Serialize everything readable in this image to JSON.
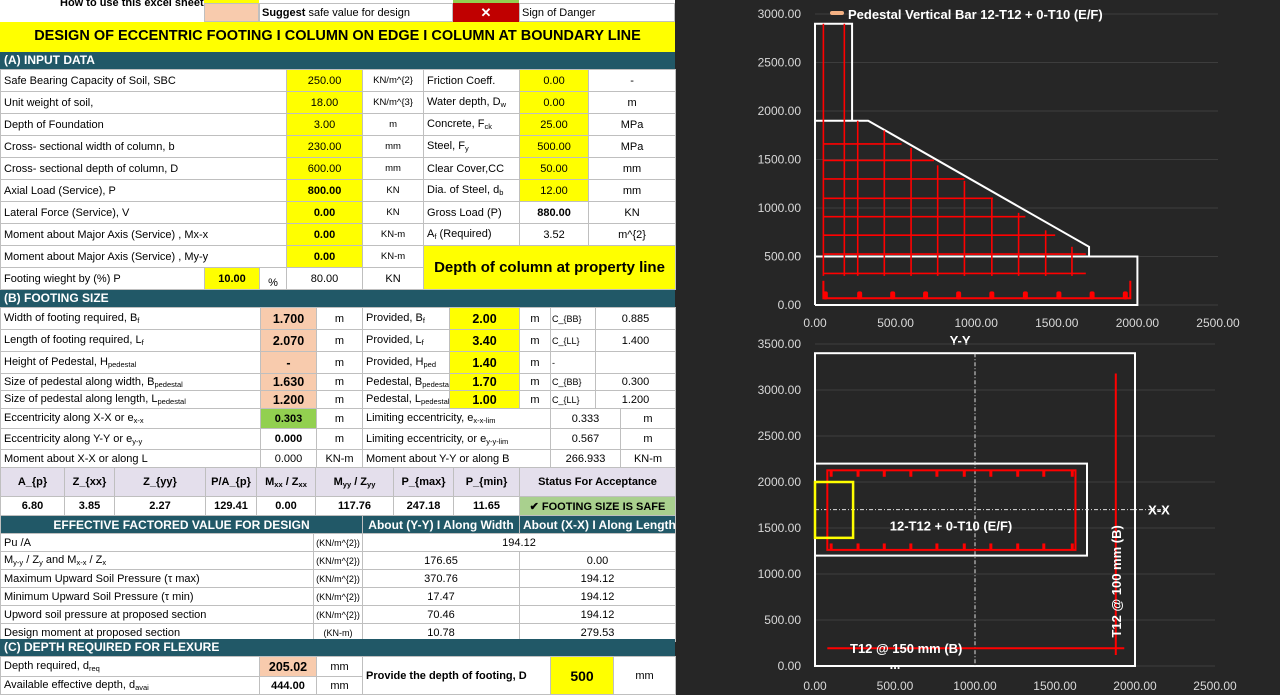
{
  "intro": {
    "how_to": "How to use this excel sheet ?",
    "suggest_bold": "Suggest",
    "suggest_text": " safe value for design",
    "danger_mark": "✕",
    "danger_text": "Sign of Danger"
  },
  "title": "DESIGN OF ECCENTRIC FOOTING I COLUMN ON EDGE I COLUMN AT BOUNDARY LINE",
  "input": {
    "heading": "(A) INPUT DATA",
    "rows": [
      [
        "Safe Bearing Capacity of Soil, SBC",
        "250.00",
        "KN/m^{2}",
        "Friction Coeff.",
        "0.00",
        "-"
      ],
      [
        "Unit weight of soil,",
        "18.00",
        "KN/m^{3}",
        "Water depth, D_{w}",
        "0.00",
        "m"
      ],
      [
        "Depth of Foundation",
        "3.00",
        "m",
        "Concrete, F_{ck}",
        "25.00",
        "MPa"
      ],
      [
        "Cross- sectional width of column, b",
        "230.00",
        "mm",
        "Steel, F_{y}",
        "500.00",
        "MPa"
      ],
      [
        "Cross- sectional depth of column, D",
        "600.00",
        "mm",
        "Clear Cover,CC",
        "50.00",
        "mm"
      ],
      [
        "Axial Load (Service), P",
        "800.00",
        "KN",
        "Dia. of Steel, d_{b}",
        "12.00",
        "mm"
      ],
      [
        "Lateral Force (Service), V",
        "0.00",
        "KN",
        "Gross Load (P)",
        "880.00",
        "KN"
      ],
      [
        "Moment about Major Axis (Service) , Mx-x",
        "0.00",
        "KN-m",
        "A_{f} (Required)",
        "3.52",
        "m^{2}"
      ],
      [
        "Moment about Major Axis (Service) , My-y",
        "0.00",
        "KN-m"
      ]
    ],
    "footing_weight": {
      "label": "Footing wieght by (%) P",
      "percent": "10.00",
      "percent_unit": "%",
      "value": "80.00",
      "unit": "KN"
    },
    "note": "Depth of column at property line"
  },
  "footing": {
    "heading": "(B) FOOTING SIZE",
    "rows": [
      [
        "Width of footing required, B_{f}",
        "1.700",
        "m",
        "Provided, B_{f}",
        "2.00",
        "m",
        "C_{BB}",
        "0.885"
      ],
      [
        "Length of footing required, L_{f}",
        "2.070",
        "m",
        "Provided, L_{f}",
        "3.40",
        "m",
        "C_{LL}",
        "1.400"
      ],
      [
        "Height of Pedestal, H_{pedestal}",
        "-",
        "m",
        "Provided, H_{ped}",
        "1.40",
        "m",
        "-",
        ""
      ],
      [
        "Size of pedestal along width, B_{pedestal}",
        "1.630",
        "m",
        "Pedestal, B_{pedestal}",
        "1.70",
        "m",
        "C_{BB}",
        "0.300"
      ],
      [
        "Size of pedestal along length, L_{pedestal}",
        "1.200",
        "m",
        "Pedestal, L_{pedestal}",
        "1.00",
        "m",
        "C_{LL}",
        "1.200"
      ]
    ],
    "ecc_rows": [
      [
        "Eccentricity along X-X or e_{x-x}",
        "0.303",
        "m",
        "Limiting eccentricity, e_{x-x-lim}",
        "0.333",
        "m"
      ],
      [
        "Eccentricity along Y-Y or e_{y-y}",
        "0.000",
        "m",
        "Limiting eccentricity, or e_{y-y-lim}",
        "0.567",
        "m"
      ],
      [
        "Moment about X-X or along L",
        "0.000",
        "KN-m",
        "Moment about Y-Y or along B",
        "266.933",
        "KN-m"
      ]
    ]
  },
  "summary": {
    "headers": [
      "A_{p}",
      "Z_{xx}",
      "Z_{yy}",
      "P/A_{p}",
      "M_{xx} / Z_{xx}",
      "M_{yy} / Z_{yy}",
      "P_{max}",
      "P_{min}",
      "Status For Acceptance"
    ],
    "values": [
      "6.80",
      "3.85",
      "2.27",
      "129.41",
      "0.00",
      "117.76",
      "247.18",
      "11.65"
    ],
    "status": "✔ FOOTING SIZE IS SAFE",
    "status_color": "#a9d08e"
  },
  "effective": {
    "heading": "EFFECTIVE FACTORED VALUE FOR DESIGN",
    "col_yy": "About (Y-Y) I Along Width",
    "col_xx": "About (X-X) I Along Length",
    "pu": [
      "Pu /A",
      "(KN/m^{2})",
      "194.12"
    ],
    "rows": [
      [
        "M_{y-y} / Z_{y} and M_{x-x} / Z_{x}",
        "(KN/m^{2})",
        "176.65",
        "0.00"
      ],
      [
        "Maximum Upward Soil Pressure (τ max)",
        "(KN/m^{2})",
        "370.76",
        "194.12"
      ],
      [
        "Minimum Upward Soil Pressure (τ min)",
        "(KN/m^{2})",
        "17.47",
        "194.12"
      ],
      [
        "Upword soil pressure at proposed section",
        "(KN/m^{2})",
        "70.46",
        "194.12"
      ],
      [
        "Design moment at proposed section",
        "(KN-m)",
        "10.78",
        "279.53"
      ]
    ]
  },
  "flexure": {
    "heading": "(C) DEPTH REQUIRED FOR FLEXURE",
    "rows": [
      [
        "Depth required, d_{req}",
        "205.02",
        "mm"
      ],
      [
        "Available effective depth, d_{avai}",
        "444.00",
        "mm"
      ]
    ],
    "provide_label": "Provide the depth of footing, D",
    "provide_value": "500",
    "provide_unit": "mm"
  },
  "colors": {
    "header": "#215867",
    "input": "#ffff00",
    "suggest": "#f8cbad",
    "danger": "#c00000",
    "safe": "#92d050",
    "rebar": "#ff0000",
    "column": "#ffff00",
    "outline": "#ffffff"
  },
  "chart_data": [
    {
      "type": "line",
      "title": "",
      "xlabel": "Y-Y",
      "legend": "Pedestal Vertical Bar 12-T12 + 0-T10 (E/F)",
      "legend_position": "top",
      "xlim": [
        0,
        2500
      ],
      "ylim": [
        0,
        3000
      ],
      "grid": true,
      "xticks": [
        "0.00",
        "500.00",
        "1000.00",
        "1500.00",
        "2000.00",
        "2500.00"
      ],
      "yticks": [
        "0.00",
        "500.00",
        "1000.00",
        "1500.00",
        "2000.00",
        "2500.00",
        "3000.00"
      ],
      "outlines": [
        {
          "name": "footing",
          "points": [
            [
              0,
              0
            ],
            [
              2000,
              0
            ],
            [
              2000,
              500
            ],
            [
              0,
              500
            ],
            [
              0,
              0
            ]
          ]
        },
        {
          "name": "pedestal",
          "points": [
            [
              0,
              500
            ],
            [
              0,
              1900
            ],
            [
              330,
              1900
            ],
            [
              1700,
              600
            ],
            [
              1700,
              500
            ]
          ]
        },
        {
          "name": "column",
          "points": [
            [
              0,
              1900
            ],
            [
              0,
              2900
            ],
            [
              230,
              2900
            ],
            [
              230,
              1900
            ]
          ]
        }
      ],
      "vertical_bars": [
        [
          52,
          300,
          2900
        ],
        [
          182,
          300,
          2900
        ],
        [
          265,
          300,
          1900
        ],
        [
          430,
          300,
          1800
        ],
        [
          596,
          300,
          1620
        ],
        [
          761,
          300,
          1440
        ],
        [
          927,
          300,
          1280
        ],
        [
          1097,
          300,
          1100
        ],
        [
          1263,
          300,
          950
        ],
        [
          1431,
          300,
          770
        ],
        [
          1594,
          300,
          600
        ]
      ],
      "horizontal_bars": [
        [
          1660,
          52,
          537
        ],
        [
          1490,
          52,
          738
        ],
        [
          1300,
          52,
          927
        ],
        [
          1100,
          52,
          1104
        ],
        [
          910,
          52,
          1305
        ],
        [
          720,
          52,
          1490
        ],
        [
          525,
          52,
          1680
        ],
        [
          325,
          52,
          1680
        ]
      ],
      "bottom_bar": [
        [
          52,
          250
        ],
        [
          52,
          70
        ],
        [
          1956,
          70
        ],
        [
          1956,
          250
        ]
      ],
      "bottom_dots": [
        64,
        277,
        482,
        686,
        891,
        1097,
        1305,
        1513,
        1719,
        1925
      ]
    },
    {
      "type": "line",
      "title": "",
      "xlim": [
        0,
        2500
      ],
      "ylim": [
        0,
        3500
      ],
      "grid": true,
      "xticks": [
        "0.00",
        "500.00",
        "1000.00",
        "1500.00",
        "2000.00",
        "2500.00"
      ],
      "yticks": [
        "0.00",
        "500.00",
        "1000.00",
        "1500.00",
        "2000.00",
        "2500.00",
        "3000.00",
        "3500.00"
      ],
      "footing": [
        0,
        0,
        2000,
        3400
      ],
      "pedestal": [
        0,
        1200,
        1700,
        2200
      ],
      "column": [
        0,
        1393,
        238,
        2000
      ],
      "ties": [
        77,
        1262,
        1628,
        2127
      ],
      "tie_bars": [
        101,
        269,
        433,
        599,
        762,
        933,
        1099,
        1267,
        1430,
        1608
      ],
      "axis_x": 1000,
      "axis_y": 1700,
      "bar_vertical": [
        1880,
        120,
        3180
      ],
      "bar_horizontal": [
        193,
        77,
        1933
      ],
      "labels": {
        "axis": "X-X",
        "pedestal_bars": "12-T12 + 0-T10 (E/F)",
        "bottom_bars": "T12 @ 150 mm (B)",
        "side_bars": "T12 @ 100 mm (B)",
        "ellipsis": "..."
      }
    }
  ]
}
